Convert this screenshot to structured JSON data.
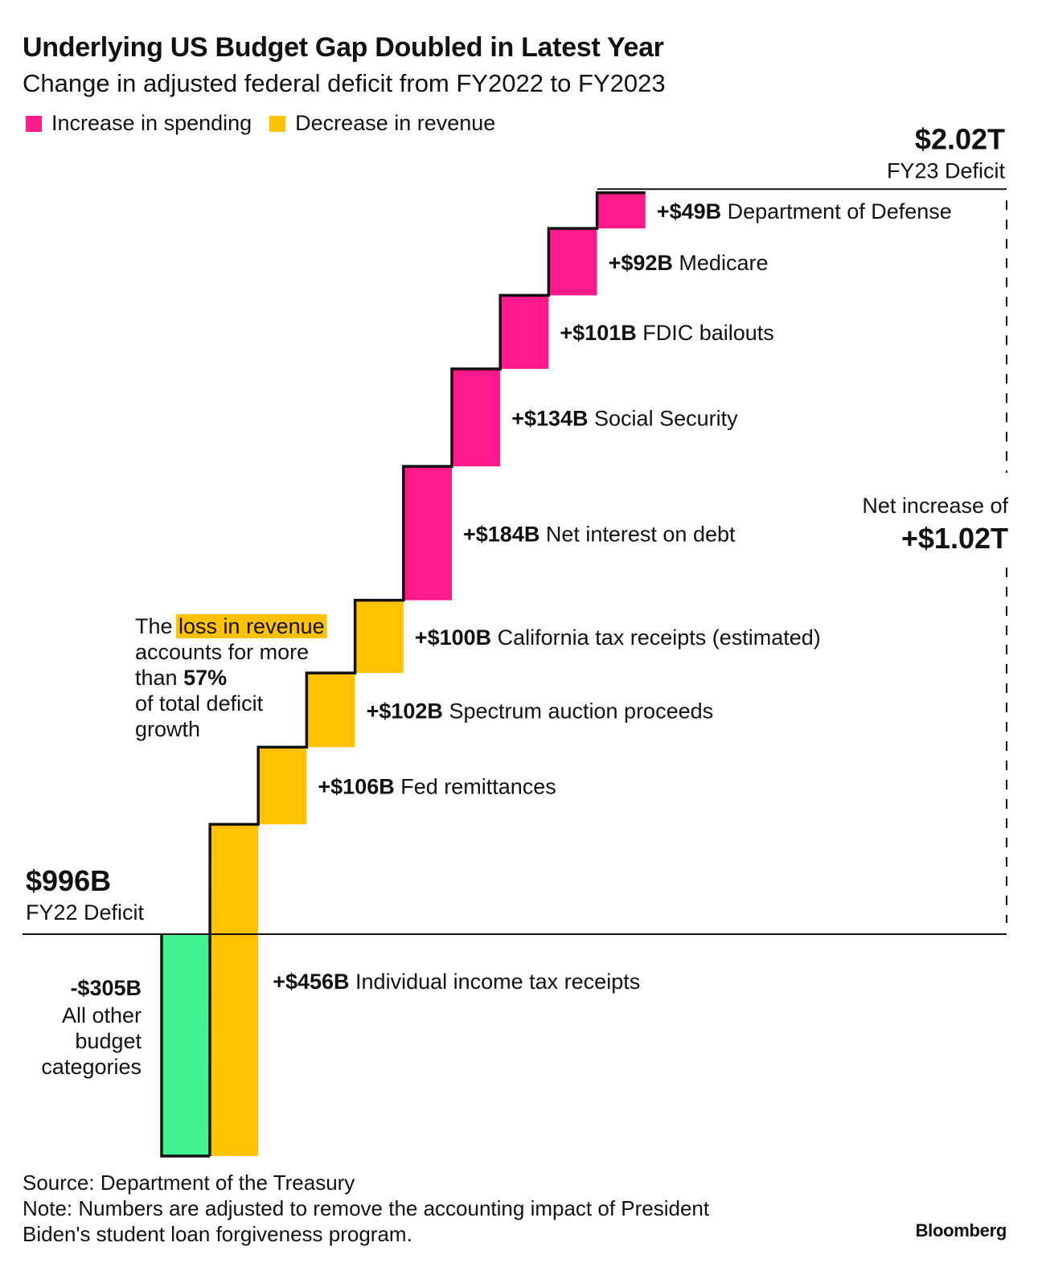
{
  "title": "Underlying US Budget Gap Doubled in Latest Year",
  "subtitle": "Change in adjusted federal deficit from FY2022 to FY2023",
  "legend": [
    {
      "label": "Increase in spending",
      "color": "#ff1a8c"
    },
    {
      "label": "Decrease in revenue",
      "color": "#ffc200"
    }
  ],
  "colors": {
    "spending": "#ff1a8c",
    "revenue": "#ffc200",
    "other": "#41f28f",
    "line": "#111111"
  },
  "chart_data": {
    "type": "waterfall",
    "unit": "billions USD",
    "start": {
      "value": 996,
      "label": "$996B",
      "sublabel": "FY22 Deficit"
    },
    "end": {
      "value": 2020,
      "label": "$2.02T",
      "sublabel": "FY23 Deficit"
    },
    "net": {
      "label": "Net increase of",
      "value_label": "+$1.02T"
    },
    "steps": [
      {
        "name": "All other budget categories",
        "amount_label": "-$305B",
        "value": -305,
        "category": "other",
        "label_lines": [
          "All other",
          "budget",
          "categories"
        ]
      },
      {
        "name": "Individual income tax receipts",
        "amount_label": "+$456B",
        "value": 456,
        "category": "revenue"
      },
      {
        "name": "Fed remittances",
        "amount_label": "+$106B",
        "value": 106,
        "category": "revenue"
      },
      {
        "name": "Spectrum auction proceeds",
        "amount_label": "+$102B",
        "value": 102,
        "category": "revenue"
      },
      {
        "name": "California tax receipts (estimated)",
        "amount_label": "+$100B",
        "value": 100,
        "category": "revenue"
      },
      {
        "name": "Net interest on debt",
        "amount_label": "+$184B",
        "value": 184,
        "category": "spending"
      },
      {
        "name": "Social Security",
        "amount_label": "+$134B",
        "value": 134,
        "category": "spending"
      },
      {
        "name": "FDIC bailouts",
        "amount_label": "+$101B",
        "value": 101,
        "category": "spending"
      },
      {
        "name": "Medicare",
        "amount_label": "+$92B",
        "value": 92,
        "category": "spending"
      },
      {
        "name": "Department of Defense",
        "amount_label": "+$49B",
        "value": 49,
        "category": "spending"
      }
    ],
    "annotation": {
      "lines": [
        [
          {
            "text": "The "
          },
          {
            "text": "loss in revenue",
            "highlight": true
          }
        ],
        [
          {
            "text": "accounts for more"
          }
        ],
        [
          {
            "text": "than "
          },
          {
            "text": "57%",
            "bold": true
          }
        ],
        [
          {
            "text": "of total deficit"
          }
        ],
        [
          {
            "text": "growth"
          }
        ]
      ]
    }
  },
  "footer": {
    "source": "Source: Department of the Treasury",
    "note_line1": "Note: Numbers are adjusted to remove the accounting impact of President",
    "note_line2": "Biden's student loan forgiveness program.",
    "brand": "Bloomberg"
  }
}
